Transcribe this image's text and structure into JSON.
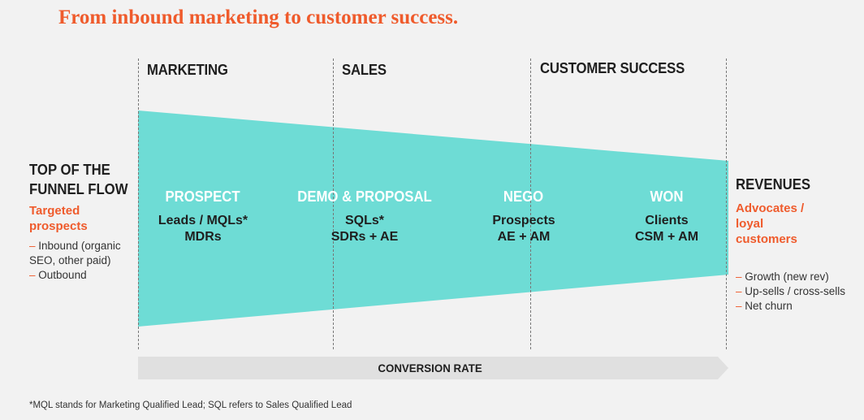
{
  "title": "From inbound marketing to customer success.",
  "columns": [
    {
      "label": "MARKETING"
    },
    {
      "label": "SALES"
    },
    {
      "label": "CUSTOMER SUCCESS"
    }
  ],
  "left_panel": {
    "heading_line1": "TOP OF THE",
    "heading_line2": "FUNNEL FLOW",
    "accent_line1": "Targeted",
    "accent_line2": "prospects",
    "items": [
      {
        "dash": "–",
        "text": "Inbound (organic"
      },
      {
        "dash": "",
        "text": "SEO, other paid)"
      },
      {
        "dash": "–",
        "text": "Outbound"
      }
    ]
  },
  "stages": [
    {
      "title": "PROSPECT",
      "line1": "Leads / MQLs*",
      "line2": "MDRs"
    },
    {
      "title": "DEMO & PROPOSAL",
      "line1": "SQLs*",
      "line2": "SDRs + AE"
    },
    {
      "title": "NEGO",
      "line1": "Prospects",
      "line2": "AE + AM"
    },
    {
      "title": "WON",
      "line1": "Clients",
      "line2": "CSM + AM"
    }
  ],
  "right_panel": {
    "heading": "REVENUES",
    "accent_line1": "Advocates /",
    "accent_line2": "loyal",
    "accent_line3": "customers",
    "items": [
      {
        "dash": "–",
        "text": "Growth (new rev)"
      },
      {
        "dash": "–",
        "text": "Up-sells / cross-sells"
      },
      {
        "dash": "–",
        "text": "Net churn"
      }
    ]
  },
  "conversion_label": "CONVERSION RATE",
  "footnote": "*MQL stands for Marketing Qualified Lead; SQL refers to Sales Qualified Lead",
  "colors": {
    "funnel": "#6edcd5",
    "accent": "#ef5b2c",
    "arrow_bar": "#e0e0e0",
    "background": "#f2f2f2"
  }
}
